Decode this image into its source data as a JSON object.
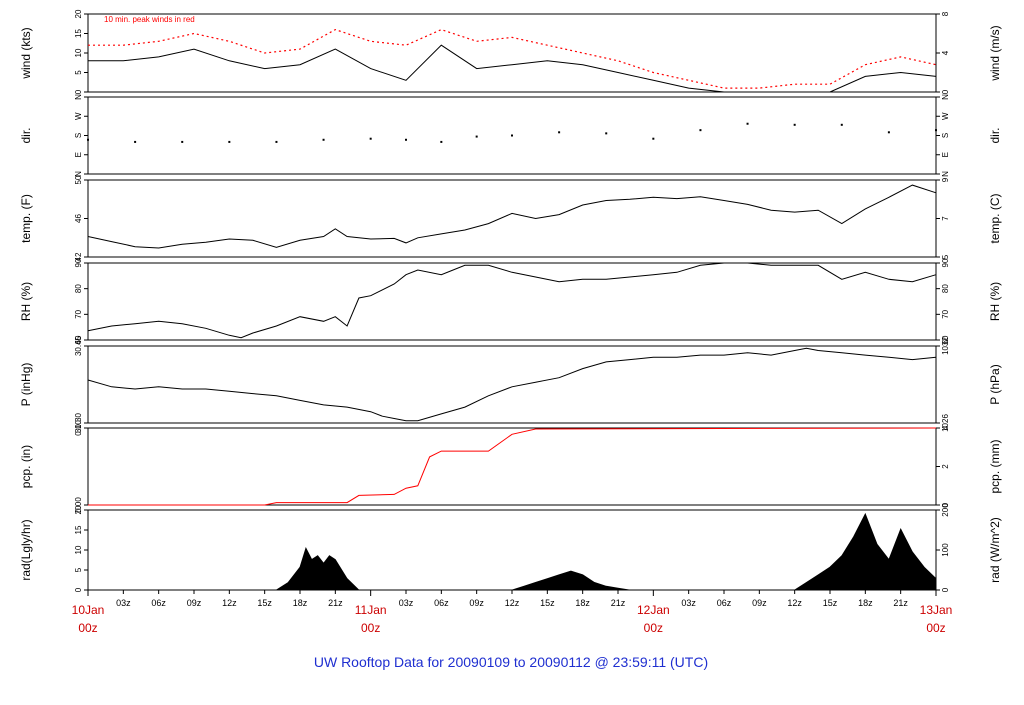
{
  "caption": "UW Rooftop Data for 20090109  to  20090112 @ 23:59:11  (UTC)",
  "peak_note": "10 min. peak winds in red",
  "colors": {
    "trace": "#000000",
    "accent": "#ff0000",
    "day": "#cc0000",
    "caption": "#1f2fd0"
  },
  "x_axis": {
    "hour_ticks": [
      "03z",
      "06z",
      "09z",
      "12z",
      "15z",
      "18z",
      "21z",
      "03z",
      "06z",
      "09z",
      "12z",
      "15z",
      "18z",
      "21z",
      "03z",
      "06z",
      "09z",
      "12z",
      "15z",
      "18z",
      "21z"
    ],
    "day_ticks": [
      {
        "date": "10Jan",
        "time": "00z"
      },
      {
        "date": "11Jan",
        "time": "00z"
      },
      {
        "date": "12Jan",
        "time": "00z"
      },
      {
        "date": "13Jan",
        "time": "00z"
      }
    ],
    "range_hours": [
      0,
      72
    ]
  },
  "chart_data": [
    {
      "type": "line",
      "left_label": "wind (kts)",
      "right_label": "wind (m/s)",
      "ylim": [
        0,
        20
      ],
      "left_ticks": [
        "0",
        "5",
        "10",
        "15",
        "20"
      ],
      "right_ticks": [
        "0",
        "4",
        "8"
      ],
      "series": [
        {
          "name": "10 min. peak winds",
          "color": "#ff0000",
          "x": [
            0,
            3,
            6,
            9,
            12,
            15,
            18,
            21,
            24,
            27,
            30,
            33,
            36,
            39,
            42,
            45,
            48,
            51,
            54,
            57,
            60,
            63,
            66,
            69,
            72
          ],
          "y": [
            12,
            12,
            13,
            15,
            13,
            10,
            11,
            16,
            13,
            12,
            16,
            13,
            14,
            12,
            10,
            8,
            5,
            3,
            1,
            1,
            2,
            2,
            7,
            9,
            7
          ]
        },
        {
          "name": "wind",
          "color": "#000000",
          "x": [
            0,
            3,
            6,
            9,
            12,
            15,
            18,
            21,
            24,
            27,
            30,
            33,
            36,
            39,
            42,
            45,
            48,
            51,
            54,
            57,
            60,
            63,
            66,
            69,
            72
          ],
          "y": [
            8,
            8,
            9,
            11,
            8,
            6,
            7,
            11,
            6,
            3,
            12,
            6,
            7,
            8,
            7,
            5,
            3,
            1,
            0,
            0,
            0,
            0,
            4,
            5,
            4
          ]
        }
      ]
    },
    {
      "type": "scatter",
      "left_label": "dir.",
      "right_label": "dir.",
      "ylim": [
        0,
        360
      ],
      "left_ticks": [
        "N",
        "E",
        "S",
        "W",
        "N"
      ],
      "right_ticks": [
        "N",
        "E",
        "S",
        "W",
        "N"
      ],
      "series": [
        {
          "name": "direction",
          "x": [
            0,
            4,
            8,
            12,
            16,
            20,
            24,
            27,
            30,
            33,
            36,
            40,
            44,
            48,
            52,
            56,
            60,
            64,
            68,
            72
          ],
          "y": [
            160,
            150,
            150,
            150,
            150,
            160,
            165,
            160,
            150,
            175,
            180,
            195,
            190,
            165,
            205,
            235,
            230,
            230,
            195,
            205
          ]
        }
      ]
    },
    {
      "type": "line",
      "left_label": "temp. (F)",
      "right_label": "temp. (C)",
      "ylim": [
        40,
        52
      ],
      "left_ticks": [
        "42",
        "46",
        "50"
      ],
      "right_ticks": [
        "5",
        "7",
        "9"
      ],
      "series": [
        {
          "name": "temperature",
          "x": [
            0,
            2,
            4,
            6,
            8,
            10,
            12,
            14,
            16,
            18,
            20,
            21,
            22,
            24,
            26,
            27,
            28,
            30,
            32,
            34,
            36,
            38,
            40,
            42,
            44,
            46,
            48,
            50,
            52,
            54,
            56,
            58,
            60,
            62,
            64,
            66,
            68,
            70,
            72
          ],
          "y": [
            43.2,
            42.4,
            41.6,
            41.4,
            42,
            42.3,
            42.8,
            42.6,
            41.5,
            42.6,
            43.2,
            44.4,
            43.2,
            42.8,
            42.9,
            42.2,
            43,
            43.6,
            44.2,
            45.2,
            46.8,
            46,
            46.6,
            48.1,
            48.8,
            49,
            49.3,
            49.1,
            49.4,
            48.8,
            48.2,
            47.3,
            47,
            47.3,
            45.2,
            47.5,
            49.3,
            51.2,
            50
          ]
        }
      ]
    },
    {
      "type": "line",
      "left_label": "RH (%)",
      "right_label": "RH (%)",
      "ylim": [
        60,
        93
      ],
      "left_ticks": [
        "60",
        "70",
        "80",
        "90"
      ],
      "right_ticks": [
        "60",
        "70",
        "80",
        "90"
      ],
      "series": [
        {
          "name": "relative humidity",
          "x": [
            0,
            2,
            4,
            6,
            8,
            10,
            12,
            13,
            14,
            16,
            18,
            20,
            21,
            22,
            23,
            24,
            26,
            27,
            28,
            30,
            31,
            32,
            34,
            36,
            38,
            40,
            42,
            44,
            46,
            48,
            50,
            52,
            54,
            56,
            58,
            60,
            62,
            64,
            66,
            68,
            70,
            72
          ],
          "y": [
            64,
            66,
            67,
            68,
            67,
            65,
            62,
            61,
            63,
            66,
            70,
            68,
            70,
            66,
            78,
            79,
            84,
            88,
            90,
            88,
            90,
            92,
            92,
            89,
            87,
            85,
            86,
            86,
            87,
            88,
            89,
            92,
            93,
            93,
            92,
            92,
            92,
            86,
            89,
            86,
            85,
            88
          ]
        }
      ]
    },
    {
      "type": "line",
      "left_label": "P (inHg)",
      "right_label": "P (hPa)",
      "ylim": [
        30.28,
        30.62
      ],
      "left_ticks": [
        "30.30",
        "30.45"
      ],
      "right_ticks": [
        "1026",
        "1032"
      ],
      "series": [
        {
          "name": "pressure",
          "x": [
            0,
            2,
            4,
            6,
            8,
            10,
            12,
            14,
            16,
            18,
            20,
            22,
            24,
            25,
            26,
            27,
            28,
            30,
            32,
            34,
            36,
            38,
            40,
            42,
            44,
            46,
            48,
            50,
            52,
            54,
            56,
            58,
            60,
            61,
            62,
            64,
            66,
            68,
            70,
            72
          ],
          "y": [
            30.47,
            30.44,
            30.43,
            30.44,
            30.43,
            30.43,
            30.42,
            30.41,
            30.4,
            30.38,
            30.36,
            30.35,
            30.33,
            30.31,
            30.3,
            30.29,
            30.29,
            30.32,
            30.35,
            30.4,
            30.44,
            30.46,
            30.48,
            30.52,
            30.55,
            30.56,
            30.57,
            30.57,
            30.58,
            30.58,
            30.59,
            30.58,
            30.6,
            30.61,
            30.6,
            30.59,
            30.58,
            30.57,
            30.56,
            30.57
          ]
        }
      ]
    },
    {
      "type": "line",
      "left_label": "pcp. (in)",
      "right_label": "pcp. (mm)",
      "ylim": [
        0,
        0.16
      ],
      "left_ticks": [
        "0.00",
        "0.10"
      ],
      "right_ticks": [
        "0",
        "2",
        "4"
      ],
      "series": [
        {
          "name": "precipitation",
          "color": "#ff0000",
          "x": [
            0,
            15,
            16,
            22,
            23,
            26,
            27,
            28,
            29,
            30,
            34,
            36,
            38,
            72
          ],
          "y": [
            0,
            0,
            0.005,
            0.005,
            0.02,
            0.022,
            0.035,
            0.04,
            0.1,
            0.112,
            0.112,
            0.147,
            0.158,
            0.16
          ]
        }
      ]
    },
    {
      "type": "area",
      "left_label": "rad(Lgly/hr)",
      "right_label": "rad (W/m^2)",
      "ylim": [
        0,
        21
      ],
      "left_ticks": [
        "0",
        "5",
        "10",
        "15",
        "20"
      ],
      "right_ticks": [
        "0",
        "100",
        "200"
      ],
      "series": [
        {
          "name": "radiation",
          "x": [
            0,
            16,
            17,
            18,
            18.5,
            19,
            19.5,
            20,
            20.5,
            21,
            22,
            23,
            36,
            37,
            38,
            39,
            40,
            41,
            42,
            43,
            44,
            45,
            46,
            47,
            60,
            61,
            62,
            63,
            64,
            65,
            66,
            67,
            68,
            69,
            70,
            71,
            72
          ],
          "y": [
            0,
            0,
            2,
            6,
            11,
            8,
            9,
            7,
            9,
            8,
            3,
            0,
            0,
            1,
            2,
            3,
            4,
            5,
            4,
            2,
            1,
            0.5,
            0,
            0,
            0,
            2,
            4,
            6,
            9,
            14,
            20,
            12,
            8,
            16,
            10,
            6,
            3
          ]
        }
      ]
    }
  ]
}
